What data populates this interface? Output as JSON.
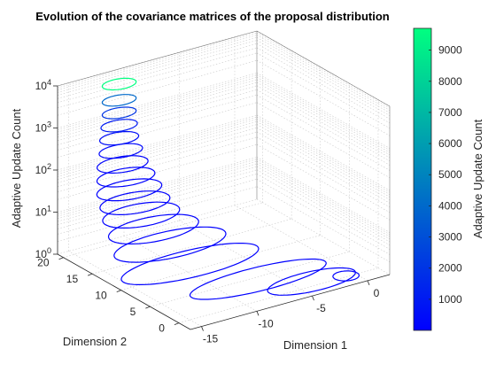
{
  "chart_data": {
    "type": "line",
    "plot_style": "3d",
    "title": "Evolution of the covariance matrices of the proposal distribution",
    "xlabel": "Dimension 1",
    "ylabel": "Dimension 2",
    "zlabel": "Adaptive Update Count",
    "zscale": "log",
    "grid": true,
    "xlim": [
      -16,
      2
    ],
    "ylim": [
      -2,
      21
    ],
    "zlim": [
      1,
      10000
    ],
    "xticks": [
      -15,
      -10,
      -5,
      0
    ],
    "yticks": [
      0,
      5,
      10,
      15,
      20
    ],
    "zticks": [
      "10^0",
      "10^1",
      "10^2",
      "10^3",
      "10^4"
    ],
    "colorbar": {
      "label": "Adaptive Update Count",
      "ticks": [
        1000,
        2000,
        3000,
        4000,
        5000,
        6000,
        7000,
        8000,
        9000
      ],
      "range": [
        1,
        9700
      ],
      "colormap": "winter",
      "color_low": "#0000ff",
      "color_high": "#00ff80",
      "location": "right"
    },
    "series_description": "Covariance ellipses stacked by update count, colored by update count",
    "series": [
      {
        "count": 1,
        "center": [
          -0.8,
          0.2
        ],
        "radii": [
          1.0,
          1.2
        ]
      },
      {
        "count": 1,
        "center": [
          -3.5,
          1.0
        ],
        "radii": [
          3.8,
          2.2
        ]
      },
      {
        "count": 1,
        "center": [
          -6.5,
          4.5
        ],
        "radii": [
          6.0,
          2.6
        ]
      },
      {
        "count": 1,
        "center": [
          -9.0,
          11.5
        ],
        "radii": [
          6.0,
          3.0
        ]
      },
      {
        "count": 2,
        "center": [
          -9.5,
          14.0
        ],
        "radii": [
          4.8,
          3.0
        ]
      },
      {
        "count": 4,
        "center": [
          -10.2,
          15.5
        ],
        "radii": [
          3.8,
          2.8
        ]
      },
      {
        "count": 8,
        "center": [
          -10.8,
          16.5
        ],
        "radii": [
          3.2,
          2.6
        ]
      },
      {
        "count": 15,
        "center": [
          -11.1,
          17.0
        ],
        "radii": [
          2.9,
          2.4
        ]
      },
      {
        "count": 30,
        "center": [
          -11.4,
          17.4
        ],
        "radii": [
          2.7,
          2.2
        ]
      },
      {
        "count": 60,
        "center": [
          -11.6,
          17.6
        ],
        "radii": [
          2.4,
          2.0
        ]
      },
      {
        "count": 120,
        "center": [
          -11.8,
          17.8
        ],
        "radii": [
          2.1,
          1.8
        ]
      },
      {
        "count": 250,
        "center": [
          -11.9,
          17.9
        ],
        "radii": [
          1.8,
          1.5
        ]
      },
      {
        "count": 500,
        "center": [
          -12.0,
          18.0
        ],
        "radii": [
          1.6,
          1.4
        ]
      },
      {
        "count": 1000,
        "center": [
          -12.0,
          18.0
        ],
        "radii": [
          1.5,
          1.3
        ]
      },
      {
        "count": 2000,
        "center": [
          -12.0,
          18.0
        ],
        "radii": [
          1.4,
          1.2
        ]
      },
      {
        "count": 4000,
        "center": [
          -12.0,
          18.0
        ],
        "radii": [
          1.4,
          1.2
        ]
      },
      {
        "count": 9700,
        "center": [
          -12.0,
          18.0
        ],
        "radii": [
          1.4,
          1.2
        ]
      }
    ]
  }
}
